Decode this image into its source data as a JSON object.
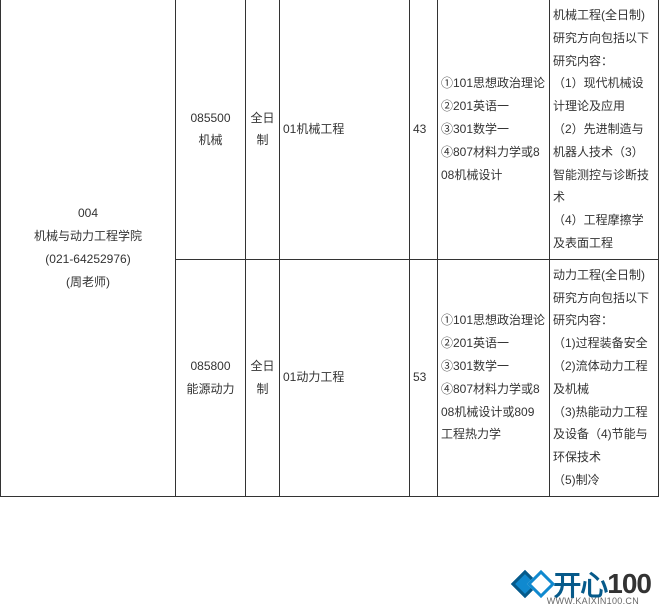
{
  "table": {
    "dept": {
      "code": "004",
      "name": "机械与动力工程学院",
      "phone": "(021-64252976)",
      "contact": "(周老师)"
    },
    "rows": [
      {
        "major_code": "085500",
        "major_name": "机械",
        "mode": "全日制",
        "direction": "01机械工程",
        "quota": "43",
        "exams": "①101思想政治理论\n②201英语一\n③301数学一\n④807材料力学或808机械设计",
        "note": "机械工程(全日制)研究方向包括以下研究内容：\n（1）现代机械设计理论及应用\n（2）先进制造与机器人技术（3）智能测控与诊断技术\n（4）工程摩擦学及表面工程"
      },
      {
        "major_code": "085800",
        "major_name": "能源动力",
        "mode": "全日制",
        "direction": "01动力工程",
        "quota": "53",
        "exams": "①101思想政治理论\n②201英语一\n③301数学一\n④807材料力学或808机械设计或809工程热力学",
        "note": "动力工程(全日制)研究方向包括以下研究内容：\n（1)过程装备安全（2)流体动力工程及机械\n（3)热能动力工程及设备（4)节能与环保技术\n（5)制冷"
      }
    ]
  },
  "watermark": {
    "cn": "开心",
    "num": "100",
    "url": "WWW.KAIXIN100.CN"
  }
}
